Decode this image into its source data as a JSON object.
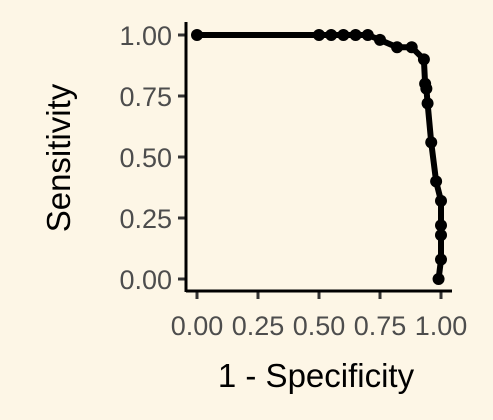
{
  "chart_data": {
    "type": "line",
    "title": "",
    "xlabel": "1 - Specificity",
    "ylabel": "Sensitivity",
    "xlim": [
      0,
      1
    ],
    "ylim": [
      0,
      1
    ],
    "x_ticks": [
      "0.00",
      "0.25",
      "0.50",
      "0.75",
      "1.00"
    ],
    "y_ticks": [
      "0.00",
      "0.25",
      "0.50",
      "0.75",
      "1.00"
    ],
    "grid": false,
    "legend": "none",
    "line_color": "#000000",
    "background_color": "#fdf6e6",
    "series": [
      {
        "x": [
          0.0,
          0.5,
          0.55,
          0.6,
          0.65,
          0.7,
          0.75,
          0.82,
          0.88,
          0.93,
          0.935,
          0.94,
          0.945,
          0.96,
          0.98,
          1.0,
          1.0,
          1.0,
          1.0,
          0.99
        ],
        "y": [
          1.0,
          1.0,
          1.0,
          1.0,
          1.0,
          1.0,
          0.98,
          0.95,
          0.95,
          0.9,
          0.8,
          0.78,
          0.72,
          0.56,
          0.4,
          0.32,
          0.22,
          0.18,
          0.08,
          0.0
        ]
      }
    ]
  }
}
